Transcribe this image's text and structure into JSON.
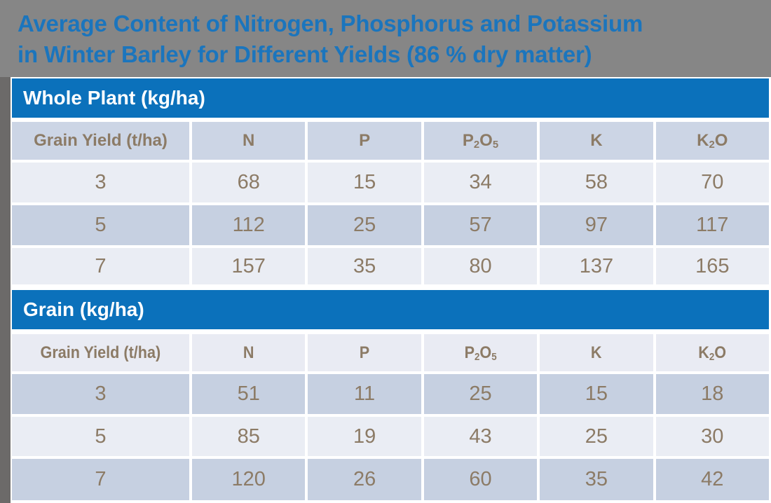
{
  "title": {
    "lines": [
      "Average Content of Nitrogen, Phosphorus and Potassium",
      "in Winter Barley for Different Yields (86 % dry matter)"
    ]
  },
  "colors": {
    "background": "#868686",
    "shadow_gray": "#6C6A69",
    "title_blue": "#1B75BD",
    "accent_blue": "#0B71BB",
    "band_text": "#FFFFFF",
    "header_medium_bg": "#CCD5E5",
    "header_light_bg": "#E9EBF3",
    "row_light_bg": "#EAEDF4",
    "row_dark_bg": "#C6D0E1",
    "text_brown": "#8C7B66"
  },
  "tables": [
    {
      "section_title": "Whole Plant (kg/ha)",
      "header_shade": "medium",
      "columns": [
        {
          "label": "Grain Yield (t/ha)",
          "subscript": false
        },
        {
          "label": "N",
          "subscript": false
        },
        {
          "label": "P",
          "subscript": false
        },
        {
          "label": "P2O5",
          "subscript": true
        },
        {
          "label": "K",
          "subscript": false
        },
        {
          "label": "K2O",
          "subscript": true
        }
      ],
      "rows": [
        {
          "shade": "light",
          "cells": [
            "3",
            "68",
            "15",
            "34",
            "58",
            "70"
          ]
        },
        {
          "shade": "dark",
          "cells": [
            "5",
            "112",
            "25",
            "57",
            "97",
            "117"
          ]
        },
        {
          "shade": "light",
          "cells": [
            "7",
            "157",
            "35",
            "80",
            "137",
            "165"
          ]
        }
      ]
    },
    {
      "section_title": "Grain (kg/ha)",
      "header_shade": "light",
      "columns": [
        {
          "label": "Grain Yield (t/ha)",
          "subscript": false
        },
        {
          "label": "N",
          "subscript": false
        },
        {
          "label": "P",
          "subscript": false
        },
        {
          "label": "P2O5",
          "subscript": true
        },
        {
          "label": "K",
          "subscript": false
        },
        {
          "label": "K2O",
          "subscript": true
        }
      ],
      "rows": [
        {
          "shade": "dark",
          "cells": [
            "3",
            "51",
            "11",
            "25",
            "15",
            "18"
          ]
        },
        {
          "shade": "light",
          "cells": [
            "5",
            "85",
            "19",
            "43",
            "25",
            "30"
          ]
        },
        {
          "shade": "dark",
          "cells": [
            "7",
            "120",
            "26",
            "60",
            "35",
            "42"
          ]
        }
      ]
    }
  ],
  "chart_data": [
    {
      "type": "table",
      "title": "Whole Plant (kg/ha)",
      "columns": [
        "Grain Yield (t/ha)",
        "N",
        "P",
        "P2O5",
        "K",
        "K2O"
      ],
      "rows": [
        [
          3,
          68,
          15,
          34,
          58,
          70
        ],
        [
          5,
          112,
          25,
          57,
          97,
          117
        ],
        [
          7,
          157,
          35,
          80,
          137,
          165
        ]
      ]
    },
    {
      "type": "table",
      "title": "Grain (kg/ha)",
      "columns": [
        "Grain Yield (t/ha)",
        "N",
        "P",
        "P2O5",
        "K",
        "K2O"
      ],
      "rows": [
        [
          3,
          51,
          11,
          25,
          15,
          18
        ],
        [
          5,
          85,
          19,
          43,
          25,
          30
        ],
        [
          7,
          120,
          26,
          60,
          35,
          42
        ]
      ]
    }
  ]
}
